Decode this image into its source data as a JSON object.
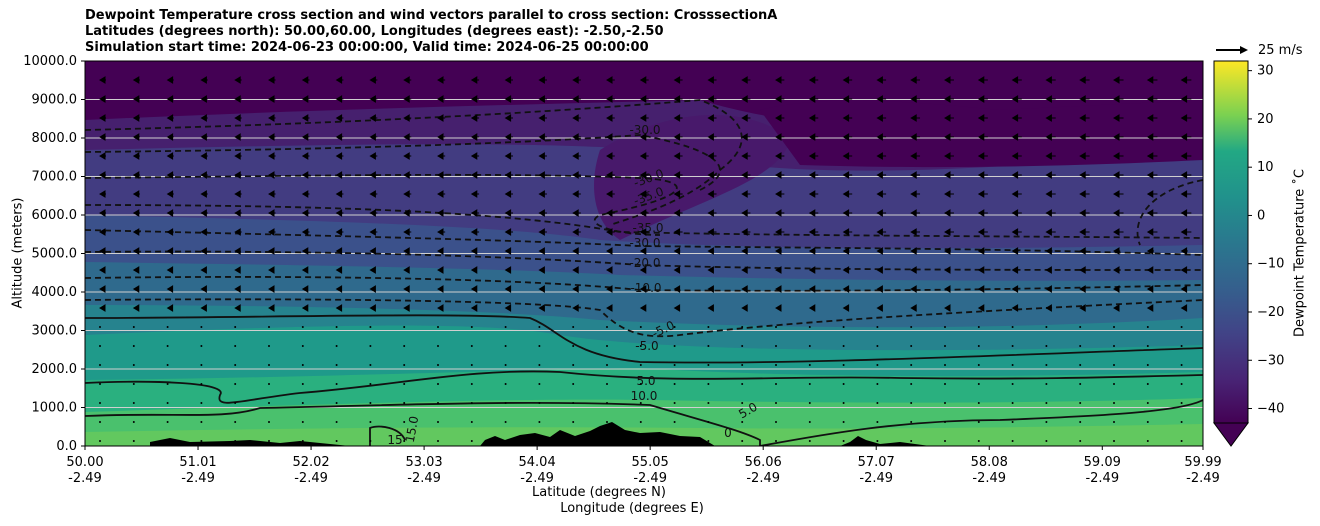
{
  "title_lines": [
    "Dewpoint Temperature cross section and wind vectors parallel to cross section: CrosssectionA",
    "Latitudes (degrees north): 50.00,60.00, Longitudes (degrees east): -2.50,-2.50",
    "Simulation start time: 2024-06-23 00:00:00, Valid time: 2024-06-25 00:00:00"
  ],
  "chart_data": {
    "type": "heatmap",
    "ylabel": "Altitude (meters)",
    "xlabel_lat": "Latitude (degrees N)",
    "xlabel_lon": "Longitude (degrees E)",
    "ylim": [
      0,
      10000
    ],
    "y_ticks": [
      "0.0",
      "1000.0",
      "2000.0",
      "3000.0",
      "4000.0",
      "5000.0",
      "6000.0",
      "7000.0",
      "8000.0",
      "9000.0",
      "10000.0"
    ],
    "y_tick_values": [
      0,
      1000,
      2000,
      3000,
      4000,
      5000,
      6000,
      7000,
      8000,
      9000,
      10000
    ],
    "x_ticks_lat": [
      "50.00",
      "51.01",
      "52.02",
      "53.03",
      "54.04",
      "55.05",
      "56.06",
      "57.07",
      "58.08",
      "59.09",
      "59.99"
    ],
    "x_ticks_lon": [
      "-2.49",
      "-2.49",
      "-2.49",
      "-2.49",
      "-2.49",
      "-2.49",
      "-2.49",
      "-2.49",
      "-2.49",
      "-2.49",
      "-2.49"
    ],
    "x_tick_values": [
      50.0,
      51.01,
      52.02,
      53.03,
      54.04,
      55.05,
      56.06,
      57.07,
      58.08,
      59.09,
      59.99
    ],
    "xlim": [
      50.0,
      59.99
    ],
    "horizontal_gridlines": true,
    "colorbar": {
      "label": "Dewpoint Temperature ˚C",
      "ticks": [
        "30",
        "20",
        "10",
        "0",
        "−10",
        "−20",
        "−30",
        "−40"
      ],
      "tick_values": [
        30,
        20,
        10,
        0,
        -10,
        -20,
        -30,
        -40
      ],
      "range": [
        -43,
        32
      ],
      "extend": "min",
      "colormap": "viridis"
    },
    "contour_labels": [
      "-30.0",
      "-30.0",
      "-35.0",
      "-35.0",
      "-30.0",
      "-20.0",
      "-10.0",
      "-5.0",
      "-5.0",
      "5.0",
      "10.0",
      "5.0",
      "0",
      "15",
      "15.0"
    ],
    "wind_key": {
      "label": "25 m/s",
      "speed": 25
    },
    "vector_direction": "towards lower latitude (leftward) above ~3000 m"
  },
  "colors": {
    "background_top": "#440154",
    "text": "#000000",
    "terrain": "#000000",
    "gridline": "#d0d0d0"
  }
}
